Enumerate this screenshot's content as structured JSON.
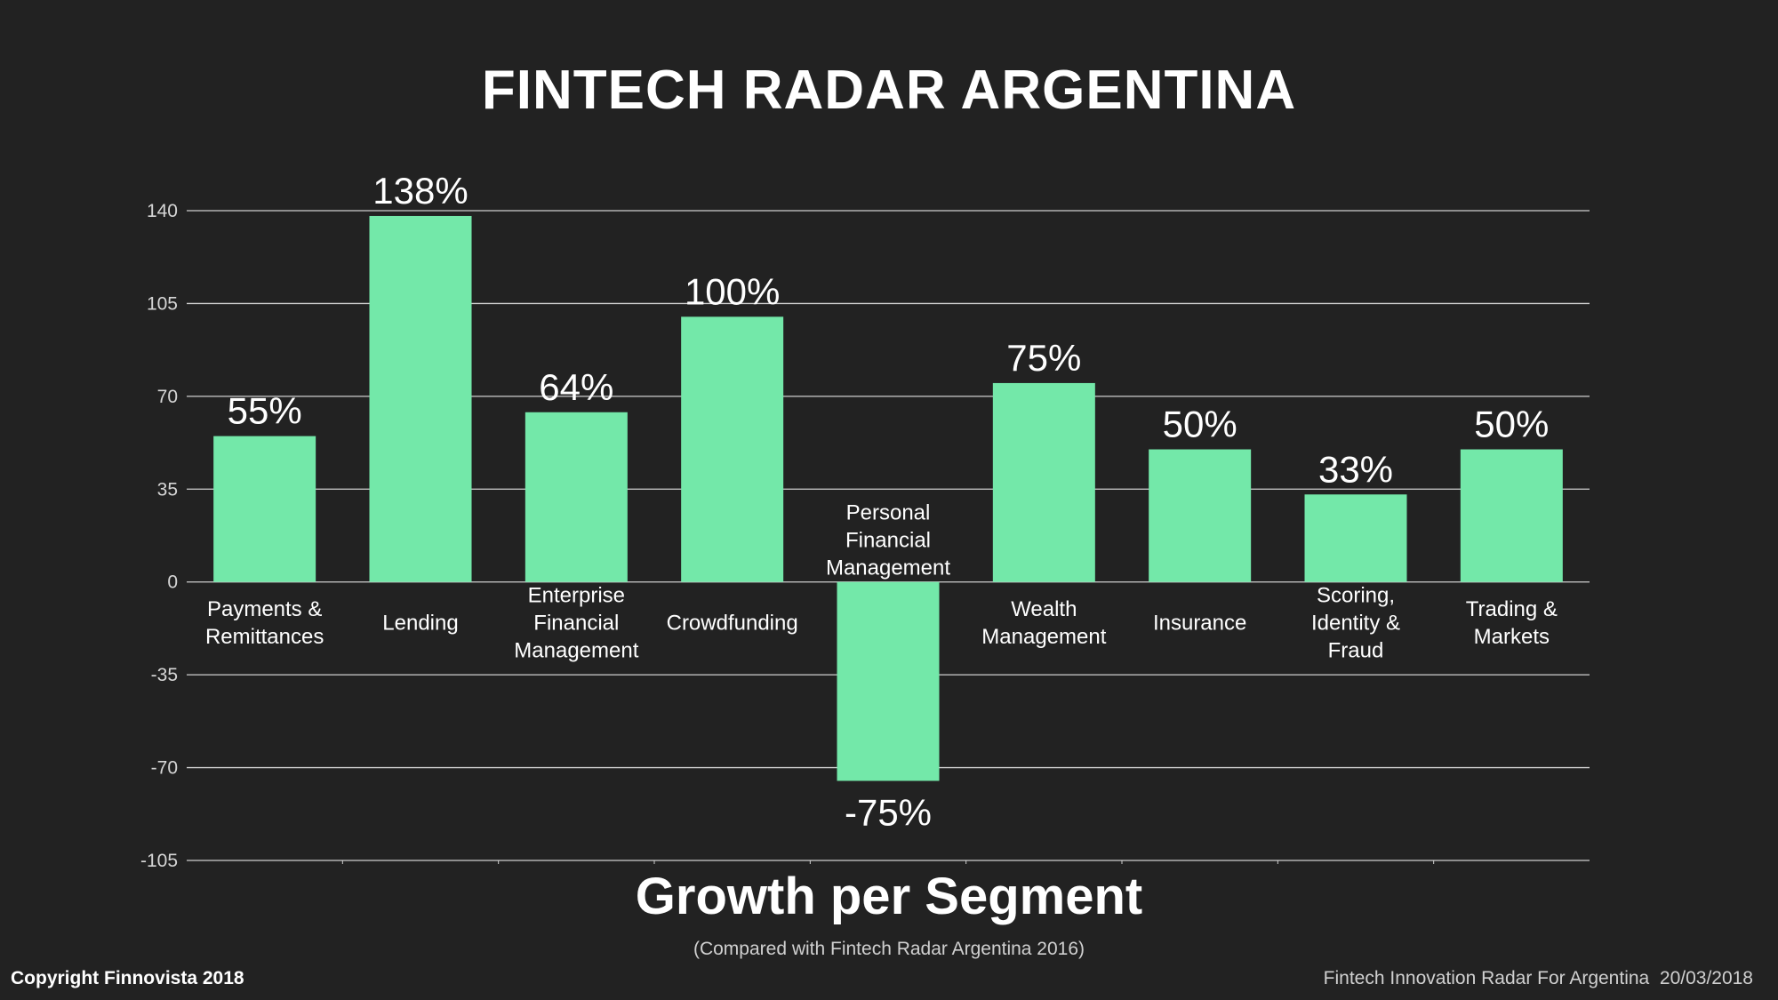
{
  "page": {
    "title": "FINTECH RADAR ARGENTINA",
    "subtitle": "Growth per Segment",
    "note": "(Compared with Fintech Radar Argentina 2016)",
    "copyright": "Copyright Finnovista 2018",
    "footer": "Fintech Innovation Radar For Argentina  20/03/2018"
  },
  "colors": {
    "background": "#222222",
    "bar": "#73E8A9",
    "grid": "#cfcfcf",
    "text": "#ffffff"
  },
  "chart_data": {
    "type": "bar",
    "categories": [
      [
        "Payments &",
        "Remittances"
      ],
      [
        "Lending"
      ],
      [
        "Enterprise",
        "Financial",
        "Management"
      ],
      [
        "Crowdfunding"
      ],
      [
        "Personal",
        "Financial",
        "Management"
      ],
      [
        "Wealth",
        "Management"
      ],
      [
        "Insurance"
      ],
      [
        "Scoring,",
        "Identity &",
        "Fraud"
      ],
      [
        "Trading &",
        "Markets"
      ]
    ],
    "values": [
      55,
      138,
      64,
      100,
      -75,
      75,
      50,
      33,
      50
    ],
    "data_labels": [
      "55%",
      "138%",
      "64%",
      "100%",
      "-75%",
      "75%",
      "50%",
      "33%",
      "50%"
    ],
    "yticks": [
      140,
      105,
      70,
      35,
      0,
      -35,
      -70,
      -105
    ],
    "ylim": [
      -105,
      140
    ],
    "grid": true
  }
}
